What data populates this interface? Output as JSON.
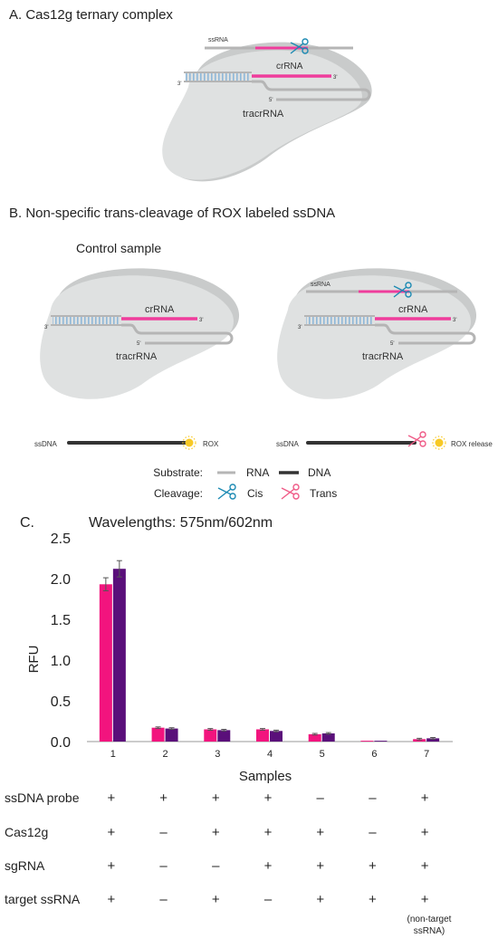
{
  "panel_a": {
    "title": "A. Cas12g ternary complex",
    "labels": {
      "ssrna": "ssRNA",
      "crrna": "crRNA",
      "tracrrna": "tracrRNA",
      "three_prime": "3'",
      "five_prime": "5'"
    }
  },
  "panel_b": {
    "title": "B. Non-specific trans-cleavage of ROX labeled ssDNA",
    "control_label": "Control sample",
    "labels": {
      "ssrna": "ssRNA",
      "crrna": "crRNA",
      "tracrrna": "tracrRNA",
      "ssdna": "ssDNA",
      "rox": "ROX",
      "rox_release": "ROX release",
      "three_prime": "3'",
      "five_prime": "5'"
    },
    "legend": {
      "substrate_label": "Substrate:",
      "rna_label": "RNA",
      "dna_label": "DNA",
      "cleavage_label": "Cleavage:",
      "cis_label": "Cis",
      "trans_label": "Trans"
    }
  },
  "colors": {
    "crrna": "#ef3d9c",
    "rna": "#b5b5b5",
    "dna": "#333333",
    "protein": "#dfe1e1",
    "protein_shadow": "#c9cbcb",
    "duplex": "#8fb8d8",
    "cis_scissor": "#1c8ab3",
    "trans_scissor": "#ef5a86",
    "rox": "#f7c926",
    "series1": "#f2147e",
    "series2": "#5a0f7a"
  },
  "panel_c": {
    "label": "C.",
    "table": {
      "rows": [
        {
          "label": "ssDNA probe",
          "values": [
            "+",
            "+",
            "+",
            "+",
            "–",
            "–",
            "+"
          ]
        },
        {
          "label": "Cas12g",
          "values": [
            "+",
            "–",
            "+",
            "+",
            "+",
            "–",
            "+"
          ]
        },
        {
          "label": "sgRNA",
          "values": [
            "+",
            "–",
            "–",
            "+",
            "+",
            "+",
            "+"
          ]
        },
        {
          "label": "target ssRNA",
          "values": [
            "+",
            "–",
            "+",
            "–",
            "+",
            "+",
            "+"
          ]
        }
      ],
      "footnote_line1": "(non-target",
      "footnote_line2": "ssRNA)"
    }
  },
  "chart_data": {
    "type": "bar",
    "title": "Wavelengths: 575nm/602nm",
    "xlabel": "Samples",
    "ylabel": "RFU",
    "categories": [
      "1",
      "2",
      "3",
      "4",
      "5",
      "6",
      "7"
    ],
    "yticks": [
      "0.0",
      "0.5",
      "1.0",
      "1.5",
      "2.0",
      "2.5"
    ],
    "ylim": [
      0,
      2.5
    ],
    "series": [
      {
        "values": [
          1.93,
          0.17,
          0.15,
          0.15,
          0.09,
          0.01,
          0.03
        ],
        "errors": [
          0.08,
          0.01,
          0.01,
          0.01,
          0.01,
          0.0,
          0.01
        ]
      },
      {
        "values": [
          2.12,
          0.16,
          0.14,
          0.13,
          0.1,
          0.01,
          0.04
        ],
        "errors": [
          0.1,
          0.01,
          0.01,
          0.01,
          0.01,
          0.0,
          0.01
        ]
      }
    ],
    "grid": false,
    "legend": "none"
  }
}
